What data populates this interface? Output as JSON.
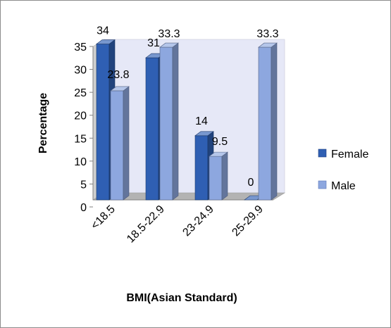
{
  "chart_data": {
    "type": "bar",
    "categories": [
      "<18.5",
      "18.5-22.9",
      "23-24.9",
      "25-29.9"
    ],
    "series": [
      {
        "name": "Female",
        "values": [
          34,
          31,
          14,
          0
        ],
        "color": "#2f5fb3"
      },
      {
        "name": "Male",
        "values": [
          23.8,
          33.3,
          9.5,
          33.3
        ],
        "color": "#8da7df"
      }
    ],
    "data_labels": [
      [
        "34",
        "31",
        "14",
        "0"
      ],
      [
        "23.8",
        "33.3",
        "9.5",
        "33.3"
      ]
    ],
    "xlabel": "BMI(Asian Standard)",
    "ylabel": "Percentage",
    "ylim": [
      0,
      35
    ],
    "yticks": [
      "0",
      "5",
      "10",
      "15",
      "20",
      "25",
      "30",
      "35"
    ],
    "grid": false,
    "legend_position": "right",
    "style": "3d-clustered-column"
  }
}
